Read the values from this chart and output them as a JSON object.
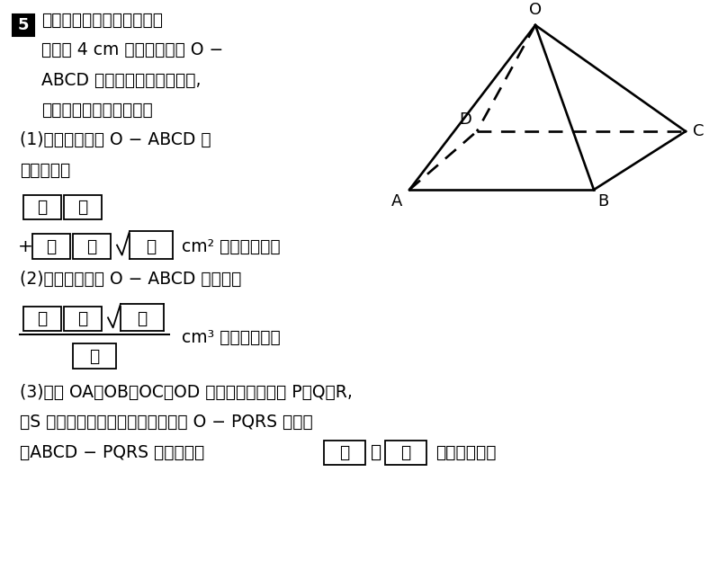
{
  "bg_color": "#ffffff",
  "text_color": "#000000",
  "lines_top": [
    "図のように，すべての辺の",
    "長さが 4 cm の正四角すい O −",
    "ABCD があります。このとき,",
    "次の問いに答えなさい。"
  ],
  "part1_label": "(1)　正四角すい O − ABCD の",
  "part1_label2": "　表面積は",
  "part2_label": "(2)　正四角すい O − ABCD の体積は",
  "part3_line1": "(3)　辺 OA，OB，OC，OD の中点をそれぞれ P，Q，R,",
  "part3_line2": "　S とする。このとき，正四角すい O − PQRS と立体",
  "part3_line3": "　ABCD − PQRS の体積比は",
  "box_ア": "ア",
  "box_イ": "イ",
  "box_ウ": "ウ",
  "box_エ": "エ",
  "box_オ": "オ",
  "box_カ": "カ",
  "box_キ": "キ",
  "box_ク": "ク",
  "box_ケ": "ケ",
  "box_コ": "コ",
  "box_サ": "サ",
  "cm2_suffix": "cm² になります。",
  "cm3_suffix": "cm³ になります。",
  "ni_narimasu": "になります。"
}
